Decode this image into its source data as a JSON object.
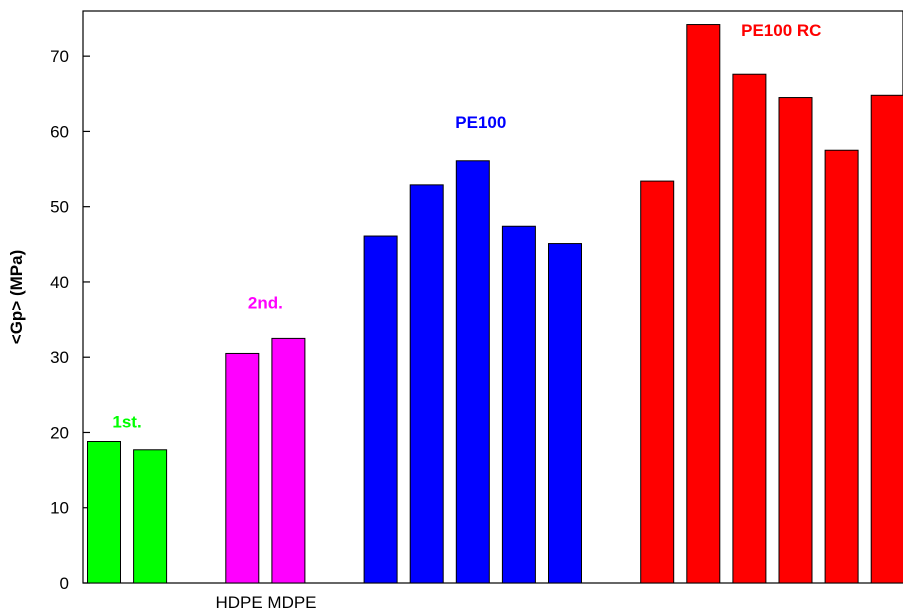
{
  "chart_data": {
    "type": "bar",
    "ylabel": "<Gp> (MPa)",
    "xlabel": "HDPE MDPE",
    "ylim": [
      0,
      76
    ],
    "yticks": [
      0,
      10,
      20,
      30,
      40,
      50,
      60,
      70
    ],
    "grid": false,
    "series": [
      {
        "name": "1st.",
        "color": "#00ff00",
        "values": [
          18.8,
          17.7
        ]
      },
      {
        "name": "2nd.",
        "color": "#ff00ff",
        "values": [
          30.5,
          32.5
        ]
      },
      {
        "name": "PE100",
        "color": "#0000ff",
        "values": [
          46.1,
          52.9,
          56.1,
          47.4,
          45.1
        ]
      },
      {
        "name": "PE100 RC",
        "color": "#ff0000",
        "values": [
          53.4,
          74.2,
          67.6,
          64.5,
          57.5,
          64.8
        ]
      }
    ]
  }
}
